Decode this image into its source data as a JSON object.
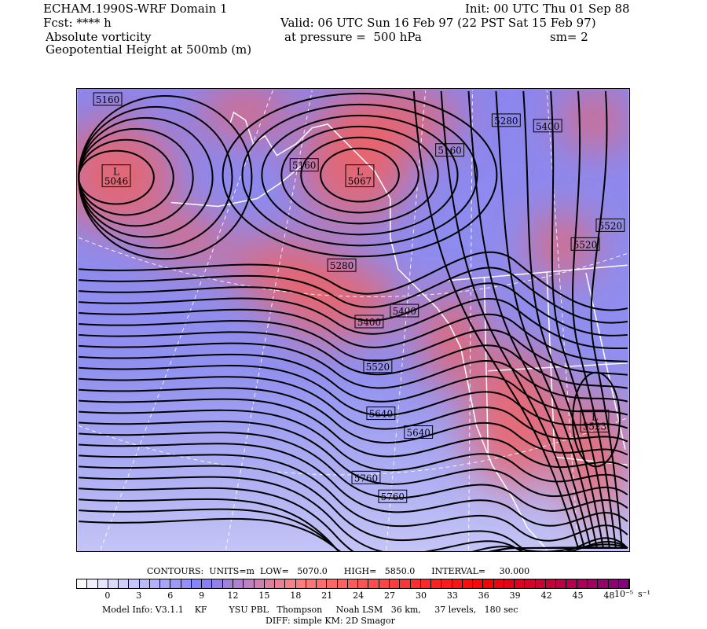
{
  "header": {
    "model_title": "ECHAM.1990S-WRF Domain 1",
    "init": "Init: 00 UTC Thu 01 Sep 88",
    "fcst": "Fcst: **** h",
    "valid": "Valid: 06 UTC Sun 16 Feb 97 (22 PST Sat 15 Feb 97)",
    "field1": "Absolute vorticity",
    "pressure": "at pressure =  500 hPa",
    "smoothing": "sm= 2",
    "field2": "Geopotential Height at 500mb (m)"
  },
  "map": {
    "lows": [
      {
        "label": "L",
        "value": "5046"
      },
      {
        "label": "L",
        "value": "5067"
      },
      {
        "label": "L",
        "value": "5523"
      }
    ],
    "contour_labels": [
      "5160",
      "5160",
      "5160",
      "5280",
      "5280",
      "5400",
      "5400",
      "5400",
      "5520",
      "5520",
      "5520",
      "5640",
      "5640",
      "5760",
      "5760"
    ],
    "colors": {
      "vorticity_low": "#8080f0",
      "vorticity_high": "#f06060",
      "lavender": "#c8c8f8",
      "contour": "#000000",
      "borders": "#ffffff"
    }
  },
  "contours_info": {
    "text": "CONTOURS:  UNITS=m  LOW=   5070.0      HIGH=   5850.0      INTERVAL=     30.000"
  },
  "colorbar": {
    "ticks": [
      "0",
      "3",
      "6",
      "9",
      "12",
      "15",
      "18",
      "21",
      "24",
      "27",
      "30",
      "33",
      "36",
      "39",
      "42",
      "45",
      "48"
    ],
    "unit_exp": "10⁻⁵",
    "unit": "s⁻¹",
    "min": -3,
    "max": 50,
    "step": 1
  },
  "footer": {
    "model_info": "Model Info: V3.1.1    KF        YSU PBL   Thompson     Noah LSM   36 km,     37 levels,   180 sec",
    "diff": "DIFF: simple KM: 2D Smagor"
  }
}
